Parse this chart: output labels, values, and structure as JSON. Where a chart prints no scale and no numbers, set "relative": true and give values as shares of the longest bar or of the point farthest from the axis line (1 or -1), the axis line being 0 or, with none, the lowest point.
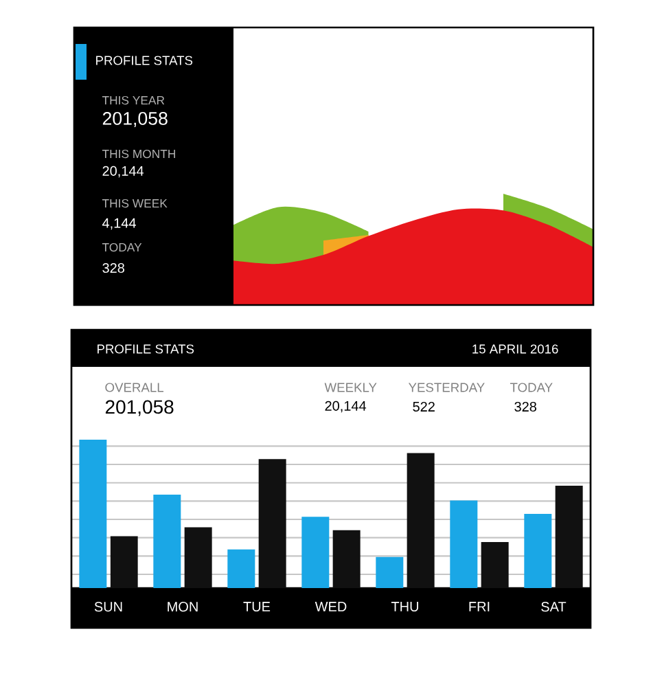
{
  "chart_data": [
    {
      "type": "other",
      "title": "PROFILE STATS",
      "annotations": [
        "THIS YEAR",
        "201,058",
        "THIS MONTH",
        "20,144",
        "THIS WEEK",
        "4,144",
        "TODAY",
        "328"
      ]
    },
    {
      "type": "area",
      "relative": true,
      "tick_labels": false,
      "categories": [
        null,
        null,
        null,
        null,
        null,
        null,
        null,
        null,
        null
      ],
      "series": [
        {
          "color": "#7dbb2e",
          "values": [
            0.72,
            0.88,
            0.83,
            0.66,
            null,
            null,
            1,
            0.87,
            0.68
          ]
        },
        {
          "color": "#f5a623",
          "values": [
            null,
            null,
            0.58,
            0.63,
            null,
            null,
            null,
            null,
            null
          ]
        },
        {
          "color": "#e8161c",
          "values": [
            0.4,
            0.37,
            0.45,
            0.62,
            0.76,
            0.86,
            0.85,
            0.72,
            0.52
          ]
        }
      ]
    },
    {
      "type": "bar",
      "title": "PROFILE STATS",
      "subtitle": "15 APRIL 2016",
      "annotations": [
        "OVERALL",
        "201,058",
        "WEEKLY",
        "20,144",
        "YESTERDAY",
        "522",
        "TODAY",
        "328"
      ],
      "relative": true,
      "grid": "y",
      "tick_labels": "x",
      "categories": [
        "SUN",
        "MON",
        "TUE",
        "WED",
        "THU",
        "FRI",
        "SAT"
      ],
      "series": [
        {
          "color": "#1aa7e6",
          "values": [
            1,
            0.63,
            0.26,
            0.48,
            0.21,
            0.59,
            0.5
          ]
        },
        {
          "color": "#111111",
          "values": [
            0.35,
            0.41,
            0.87,
            0.39,
            0.91,
            0.31,
            0.69
          ]
        }
      ]
    }
  ]
}
